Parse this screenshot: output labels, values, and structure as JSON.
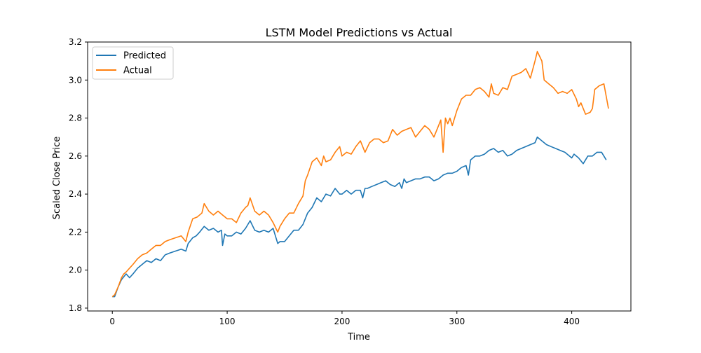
{
  "chart_data": {
    "type": "line",
    "title": "LSTM Model Predictions vs Actual",
    "xlabel": "Time",
    "ylabel": "Scaled Close Price",
    "xlim": [
      -21.5,
      451.5
    ],
    "ylim": [
      1.785,
      3.2
    ],
    "xticks": [
      0,
      100,
      200,
      300,
      400
    ],
    "yticks": [
      1.8,
      2.0,
      2.2,
      2.4,
      2.6,
      2.8,
      3.0,
      3.2
    ],
    "xtick_labels": [
      "0",
      "100",
      "200",
      "300",
      "400"
    ],
    "ytick_labels": [
      "1.8",
      "2.0",
      "2.2",
      "2.4",
      "2.6",
      "2.8",
      "3.0",
      "3.2"
    ],
    "grid": false,
    "legend": {
      "position": "upper left",
      "entries": [
        "Predicted",
        "Actual"
      ]
    },
    "series": [
      {
        "name": "Predicted",
        "color": "#1f77b4",
        "x": [
          0,
          2,
          5,
          8,
          12,
          15,
          18,
          22,
          26,
          30,
          34,
          38,
          42,
          46,
          50,
          55,
          60,
          64,
          66,
          70,
          73,
          76,
          80,
          84,
          88,
          92,
          95,
          96,
          98,
          100,
          104,
          108,
          112,
          116,
          118,
          120,
          124,
          128,
          132,
          136,
          140,
          144,
          146,
          150,
          154,
          158,
          162,
          166,
          170,
          174,
          178,
          182,
          186,
          190,
          194,
          198,
          200,
          204,
          208,
          212,
          216,
          218,
          220,
          222,
          226,
          230,
          234,
          238,
          242,
          246,
          250,
          252,
          254,
          256,
          260,
          264,
          268,
          272,
          276,
          280,
          284,
          288,
          292,
          296,
          300,
          304,
          308,
          310,
          312,
          316,
          320,
          324,
          328,
          332,
          336,
          340,
          344,
          348,
          352,
          356,
          360,
          364,
          368,
          370,
          374,
          378,
          382,
          386,
          390,
          394,
          398,
          400,
          402,
          406,
          410,
          414,
          418,
          422,
          426,
          430
        ],
        "y": [
          1.86,
          1.86,
          1.91,
          1.95,
          1.98,
          1.96,
          1.98,
          2.01,
          2.03,
          2.05,
          2.04,
          2.06,
          2.05,
          2.08,
          2.09,
          2.1,
          2.11,
          2.1,
          2.14,
          2.17,
          2.18,
          2.2,
          2.23,
          2.21,
          2.22,
          2.2,
          2.21,
          2.13,
          2.19,
          2.18,
          2.18,
          2.2,
          2.19,
          2.22,
          2.24,
          2.26,
          2.21,
          2.2,
          2.21,
          2.2,
          2.22,
          2.14,
          2.15,
          2.15,
          2.18,
          2.21,
          2.21,
          2.24,
          2.3,
          2.33,
          2.38,
          2.36,
          2.4,
          2.39,
          2.43,
          2.4,
          2.4,
          2.42,
          2.4,
          2.42,
          2.42,
          2.38,
          2.43,
          2.43,
          2.44,
          2.45,
          2.46,
          2.47,
          2.45,
          2.44,
          2.46,
          2.43,
          2.48,
          2.46,
          2.47,
          2.48,
          2.48,
          2.49,
          2.49,
          2.47,
          2.48,
          2.5,
          2.51,
          2.51,
          2.52,
          2.54,
          2.55,
          2.5,
          2.58,
          2.6,
          2.6,
          2.61,
          2.63,
          2.64,
          2.62,
          2.63,
          2.6,
          2.61,
          2.63,
          2.64,
          2.65,
          2.66,
          2.67,
          2.7,
          2.68,
          2.66,
          2.65,
          2.64,
          2.63,
          2.62,
          2.6,
          2.59,
          2.61,
          2.59,
          2.56,
          2.6,
          2.6,
          2.62,
          2.62,
          2.58
        ]
      },
      {
        "name": "Actual",
        "color": "#ff7f0e",
        "x": [
          0,
          2,
          5,
          8,
          10,
          12,
          15,
          18,
          22,
          26,
          30,
          34,
          38,
          42,
          46,
          50,
          55,
          60,
          64,
          66,
          70,
          74,
          78,
          80,
          84,
          88,
          92,
          96,
          100,
          104,
          108,
          112,
          116,
          118,
          120,
          124,
          128,
          132,
          136,
          140,
          144,
          146,
          150,
          154,
          158,
          162,
          166,
          168,
          170,
          174,
          178,
          182,
          184,
          186,
          190,
          194,
          198,
          200,
          204,
          208,
          212,
          216,
          220,
          224,
          228,
          232,
          236,
          240,
          244,
          248,
          252,
          256,
          260,
          264,
          268,
          272,
          276,
          280,
          284,
          286,
          288,
          290,
          292,
          294,
          296,
          300,
          304,
          308,
          312,
          316,
          320,
          324,
          328,
          330,
          332,
          336,
          340,
          344,
          348,
          352,
          356,
          360,
          364,
          368,
          370,
          374,
          376,
          380,
          384,
          388,
          392,
          396,
          400,
          404,
          406,
          408,
          412,
          416,
          418,
          420,
          424,
          428,
          432
        ],
        "y": [
          1.86,
          1.87,
          1.91,
          1.96,
          1.98,
          1.99,
          2.01,
          2.03,
          2.06,
          2.08,
          2.09,
          2.11,
          2.13,
          2.13,
          2.15,
          2.16,
          2.17,
          2.18,
          2.15,
          2.2,
          2.27,
          2.28,
          2.3,
          2.35,
          2.31,
          2.29,
          2.31,
          2.29,
          2.27,
          2.27,
          2.25,
          2.3,
          2.33,
          2.34,
          2.38,
          2.31,
          2.29,
          2.31,
          2.29,
          2.25,
          2.2,
          2.23,
          2.27,
          2.3,
          2.3,
          2.35,
          2.39,
          2.47,
          2.5,
          2.57,
          2.59,
          2.55,
          2.6,
          2.57,
          2.58,
          2.62,
          2.65,
          2.6,
          2.62,
          2.61,
          2.65,
          2.68,
          2.62,
          2.67,
          2.69,
          2.69,
          2.67,
          2.68,
          2.74,
          2.71,
          2.73,
          2.74,
          2.75,
          2.7,
          2.73,
          2.76,
          2.74,
          2.7,
          2.76,
          2.79,
          2.62,
          2.8,
          2.77,
          2.8,
          2.76,
          2.84,
          2.9,
          2.92,
          2.92,
          2.95,
          2.96,
          2.94,
          2.91,
          2.98,
          2.93,
          2.92,
          2.96,
          2.95,
          3.02,
          3.03,
          3.04,
          3.06,
          3.01,
          3.1,
          3.15,
          3.1,
          3.0,
          2.98,
          2.96,
          2.93,
          2.94,
          2.93,
          2.95,
          2.9,
          2.86,
          2.88,
          2.82,
          2.83,
          2.85,
          2.95,
          2.97,
          2.98,
          2.85
        ]
      }
    ]
  }
}
